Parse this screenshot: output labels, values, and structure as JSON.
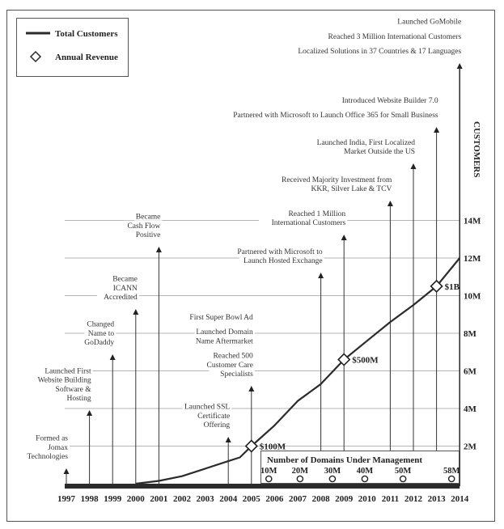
{
  "chart_data": {
    "type": "line",
    "title": "",
    "ylabel": "CUSTOMERS",
    "xlabel": "",
    "x": [
      1997,
      1998,
      1999,
      2000,
      2001,
      2002,
      2003,
      2004,
      2005,
      2006,
      2007,
      2008,
      2009,
      2010,
      2011,
      2012,
      2013,
      2014
    ],
    "ylim": [
      0,
      14000000
    ],
    "y_ticks": [
      "2M",
      "4M",
      "6M",
      "8M",
      "10M",
      "12M",
      "14M"
    ],
    "grid": true,
    "legend_placement": "top-left",
    "legend": [
      {
        "name": "Total Customers",
        "marker": "line"
      },
      {
        "name": "Annual Revenue",
        "marker": "diamond"
      }
    ],
    "series": [
      {
        "name": "Total Customers",
        "x": [
          2000,
          2001,
          2002,
          2003,
          2004,
          2004.5,
          2005,
          2006,
          2007,
          2008,
          2009,
          2010,
          2011,
          2012,
          2013,
          2014
        ],
        "values": [
          0,
          0.15,
          0.4,
          0.8,
          1.2,
          1.4,
          2.0,
          3.1,
          4.4,
          5.3,
          6.6,
          7.6,
          8.6,
          9.5,
          10.5,
          12.0
        ],
        "unit": "millions"
      }
    ],
    "revenue_markers": [
      {
        "year": 2005,
        "customers": 2.0,
        "label": "$100M"
      },
      {
        "year": 2009,
        "customers": 6.6,
        "label": "$500M"
      },
      {
        "year": 2013,
        "customers": 10.5,
        "label": "$1B"
      }
    ],
    "milestones": [
      {
        "year": 1997,
        "items": [
          [
            "Formed as",
            "Jomax",
            "Technologies"
          ]
        ]
      },
      {
        "year": 1998,
        "items": [
          [
            "Launched First",
            "Website Building",
            "Software &",
            "Hosting"
          ]
        ]
      },
      {
        "year": 1999,
        "items": [
          [
            "Changed",
            "Name to",
            "GoDaddy"
          ]
        ]
      },
      {
        "year": 2000,
        "items": [
          [
            "Became",
            "ICANN",
            "Accredited"
          ]
        ]
      },
      {
        "year": 2001,
        "items": [
          [
            "Became",
            "Cash Flow",
            "Positive"
          ]
        ]
      },
      {
        "year": 2004,
        "items": [
          [
            "Launched SSL",
            "Certificate",
            "Offering"
          ]
        ]
      },
      {
        "year": 2005,
        "items": [
          [
            "First Super Bowl Ad"
          ],
          [
            "Launched Domain",
            "Name Aftermarket"
          ],
          [
            "Reached 500",
            "Customer Care",
            "Specialists"
          ]
        ]
      },
      {
        "year": 2008,
        "items": [
          [
            "Partnered with Microsoft to",
            "Launch Hosted Exchange"
          ]
        ]
      },
      {
        "year": 2009,
        "items": [
          [
            "Reached 1 Million",
            "International Customers"
          ]
        ]
      },
      {
        "year": 2011,
        "items": [
          [
            "Received Majority Investment from",
            "KKR, Silver Lake & TCV"
          ]
        ]
      },
      {
        "year": 2012,
        "items": [
          [
            "Launched India, First Localized",
            "Market Outside the US"
          ]
        ]
      },
      {
        "year": 2013,
        "items": [
          [
            "Introduced Website Builder 7.0"
          ],
          [
            "Partnered with Microsoft to Launch Office 365 for Small Business"
          ]
        ]
      },
      {
        "year": 2014,
        "items": [
          [
            "Launched GoMobile"
          ],
          [
            "Reached 3 Million International Customers"
          ],
          [
            "Localized Solutions in 37 Countries & 17 Languages"
          ]
        ]
      }
    ],
    "domains": {
      "title": "Number of Domains Under Management",
      "markers": [
        {
          "label": "10M",
          "year": 2005.75
        },
        {
          "label": "20M",
          "year": 2007.1
        },
        {
          "label": "30M",
          "year": 2008.5
        },
        {
          "label": "40M",
          "year": 2009.9
        },
        {
          "label": "50M",
          "year": 2011.55
        },
        {
          "label": "58M",
          "year": 2013.65
        }
      ]
    },
    "colors": {
      "line": "#2b2b2b",
      "grid": "#b5b5b5",
      "axis": "#2b2b2b"
    }
  }
}
